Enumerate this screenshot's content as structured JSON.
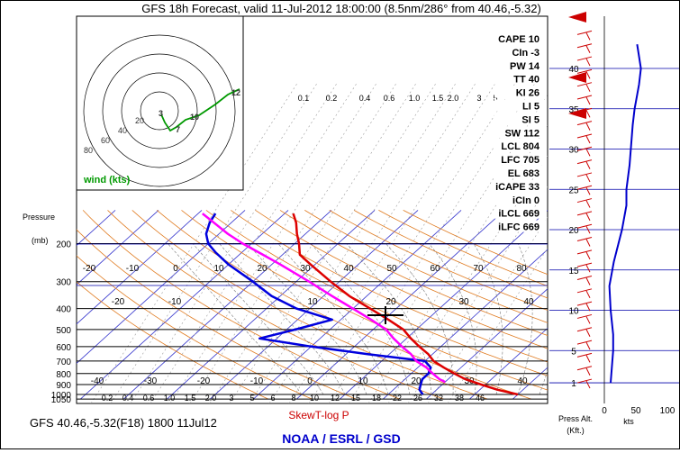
{
  "title": "GFS 18h Forecast, valid 11-Jul-2012 18:00:00 (8.5nm/286° from 40.46,-5.32)",
  "footer_left": "GFS 40.46,-5.32(F18) 1800 11Jul12",
  "footer_center": "SkewT-log P",
  "footer_org": "NOAA / ESRL / GSD",
  "pressure_axis_title": [
    "Pressure",
    "(mb)"
  ],
  "hodograph": {
    "wind_label": "wind (kts)",
    "ring_labels": [
      "20",
      "40",
      "60",
      "80"
    ],
    "height_labels": [
      "12",
      "10",
      "7",
      "3"
    ]
  },
  "right_panel": {
    "press_alt_label": [
      "Press Alt.",
      "(Kft.)"
    ],
    "kts_label": "kts",
    "altitude_ticks": [
      "40",
      "35",
      "30",
      "25",
      "20",
      "15",
      "10",
      "5",
      "1"
    ],
    "speed_ticks": [
      "0",
      "50",
      "100"
    ]
  },
  "mixing_ratio_labels": [
    "0.1",
    "0.2",
    "0.4",
    "0.6",
    "1.0",
    "1.5",
    "2.0",
    "3",
    "5"
  ],
  "mixing_ratio_labels_bottom": [
    "0.2",
    "0.4",
    "0.6",
    "1.0",
    "1.5",
    "2.0",
    "3",
    "5",
    "6",
    "8",
    "10",
    "12",
    "15",
    "18",
    "22",
    "26",
    "32",
    "38",
    "46"
  ],
  "theta_labels_upper": [
    "-20",
    "-10",
    "0",
    "10",
    "20",
    "30",
    "40",
    "50",
    "60",
    "70",
    "80"
  ],
  "theta_labels_mid": [
    "-20",
    "-10",
    "10",
    "20",
    "30",
    "40"
  ],
  "temp_labels": [
    "-40",
    "-30",
    "-20",
    "-10",
    "0",
    "10",
    "20",
    "30",
    "40"
  ],
  "indices": [
    "CAPE 10",
    "CIn -3",
    "PW 14",
    "TT 40",
    "KI 26",
    "LI 5",
    "SI 5",
    "SW 112",
    "LCL 804",
    "LFC 705",
    "EL 683",
    "iCAPE 33",
    "iCIn 0",
    "iLCL 669",
    "iLFC 669"
  ],
  "chart_data": {
    "type": "line",
    "title": "GFS 18h Forecast, valid 11-Jul-2012 18:00:00 (8.5nm/286° from 40.46,-5.32)",
    "xlabel": "",
    "ylabel": "Pressure (mb)",
    "y_scale": "log",
    "pressure_ticks": [
      200,
      300,
      400,
      500,
      600,
      700,
      800,
      900,
      1000,
      1050
    ],
    "xlim_temperature_c": [
      -45,
      45
    ],
    "ylim_pressure_mb": [
      1050,
      140
    ],
    "series": [
      {
        "color": "#dd0000",
        "points": [
          [
            1000,
            30
          ],
          [
            950,
            24
          ],
          [
            900,
            19
          ],
          [
            850,
            14
          ],
          [
            800,
            10
          ],
          [
            750,
            6
          ],
          [
            700,
            2
          ],
          [
            650,
            -1
          ],
          [
            600,
            -5
          ],
          [
            550,
            -9
          ],
          [
            500,
            -13
          ],
          [
            450,
            -19
          ],
          [
            400,
            -26
          ],
          [
            350,
            -34
          ],
          [
            300,
            -42
          ],
          [
            250,
            -51
          ],
          [
            225,
            -56
          ],
          [
            200,
            -59
          ],
          [
            180,
            -62
          ],
          [
            160,
            -65
          ],
          [
            145,
            -68
          ]
        ]
      },
      {
        "color": "#0000dd",
        "points": [
          [
            1000,
            8
          ],
          [
            950,
            6
          ],
          [
            900,
            5
          ],
          [
            850,
            4
          ],
          [
            800,
            4
          ],
          [
            750,
            3
          ],
          [
            700,
            0
          ],
          [
            650,
            -15
          ],
          [
            600,
            -30
          ],
          [
            550,
            -44
          ],
          [
            500,
            -38
          ],
          [
            450,
            -32
          ],
          [
            400,
            -43
          ],
          [
            350,
            -52
          ],
          [
            300,
            -60
          ],
          [
            250,
            -70
          ],
          [
            220,
            -76
          ],
          [
            200,
            -80
          ],
          [
            180,
            -83
          ],
          [
            160,
            -85
          ],
          [
            145,
            -86
          ]
        ]
      },
      {
        "color": "#ff00ff",
        "points": [
          [
            875,
            10
          ],
          [
            850,
            8
          ],
          [
            800,
            5
          ],
          [
            750,
            2
          ],
          [
            700,
            -2
          ],
          [
            650,
            -5
          ],
          [
            600,
            -9
          ],
          [
            550,
            -13
          ],
          [
            500,
            -17
          ],
          [
            450,
            -23
          ],
          [
            400,
            -30
          ],
          [
            350,
            -38
          ],
          [
            300,
            -47
          ],
          [
            250,
            -58
          ],
          [
            220,
            -66
          ],
          [
            200,
            -72
          ],
          [
            180,
            -78
          ],
          [
            160,
            -84
          ],
          [
            145,
            -89
          ]
        ]
      }
    ],
    "wind_profile": {
      "altitude_kft": [
        1,
        3,
        5,
        7,
        10,
        13,
        16,
        20,
        23,
        25,
        28,
        30,
        33,
        35,
        38,
        40,
        43
      ],
      "speed_kts": [
        10,
        12,
        14,
        14,
        10,
        8,
        15,
        28,
        35,
        35,
        40,
        42,
        45,
        48,
        55,
        58,
        52
      ],
      "x_ticks": [
        "0",
        "50",
        "100"
      ],
      "xlabel": "kts",
      "ylabel": "Press Alt. (Kft.)"
    }
  }
}
